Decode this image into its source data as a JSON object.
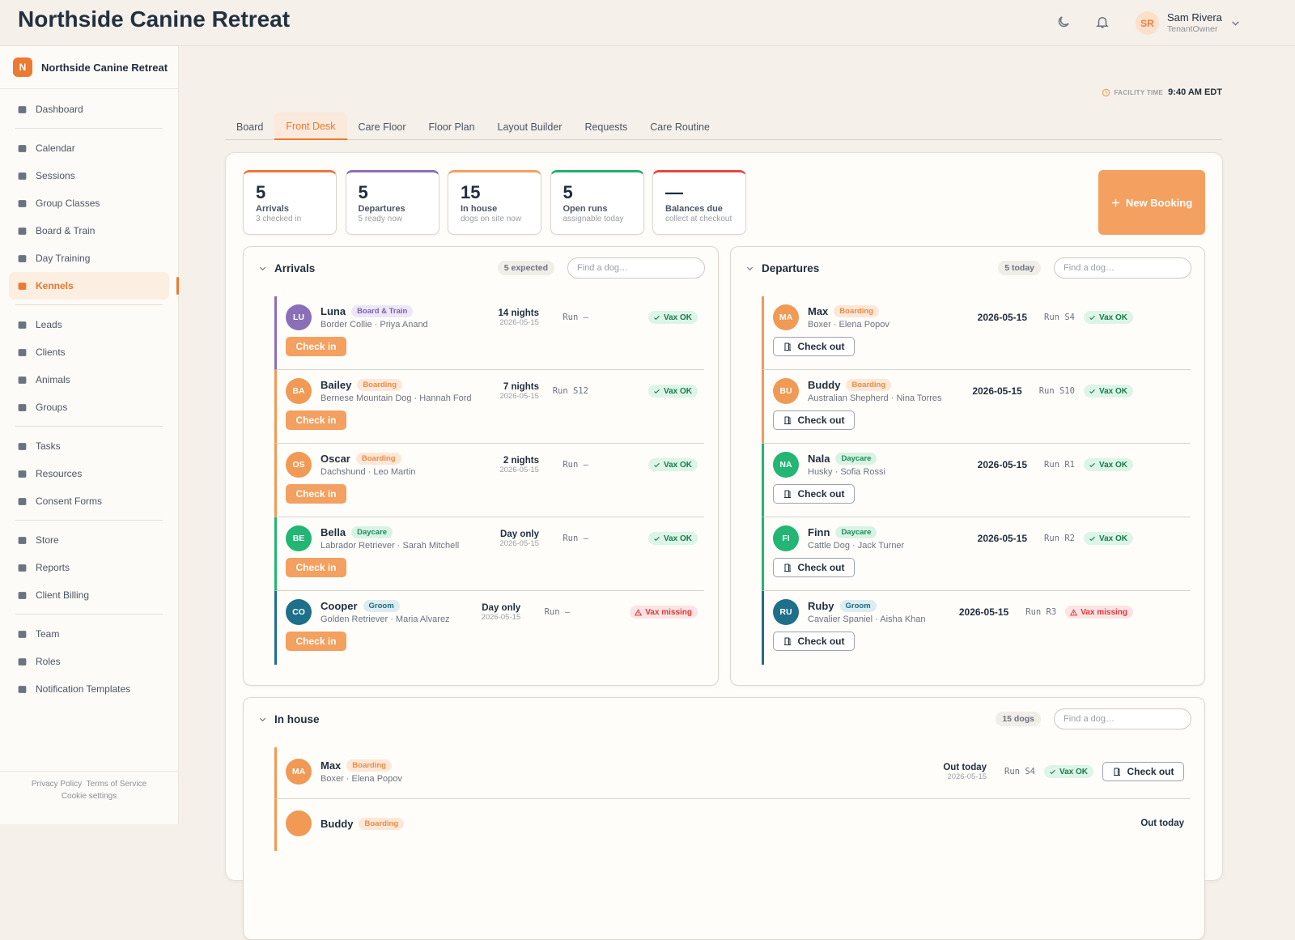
{
  "header": {
    "title": "Northside Canine Retreat",
    "user": {
      "initials": "SR",
      "name": "Sam Rivera",
      "role": "TenantOwner"
    }
  },
  "sidebar": {
    "brand_initial": "N",
    "brand": "Northside Canine Retreat",
    "groups": [
      [
        {
          "label": "Dashboard"
        }
      ],
      [
        {
          "label": "Calendar"
        },
        {
          "label": "Sessions"
        },
        {
          "label": "Group Classes"
        },
        {
          "label": "Board & Train"
        },
        {
          "label": "Day Training"
        },
        {
          "label": "Kennels",
          "active": true
        }
      ],
      [
        {
          "label": "Leads"
        },
        {
          "label": "Clients"
        },
        {
          "label": "Animals"
        },
        {
          "label": "Groups"
        }
      ],
      [
        {
          "label": "Tasks"
        },
        {
          "label": "Resources"
        },
        {
          "label": "Consent Forms"
        }
      ],
      [
        {
          "label": "Store"
        },
        {
          "label": "Reports"
        },
        {
          "label": "Client Billing"
        }
      ],
      [
        {
          "label": "Team"
        },
        {
          "label": "Roles"
        },
        {
          "label": "Notification Templates"
        }
      ]
    ],
    "footer": [
      "Privacy Policy",
      "Terms of Service",
      "Cookie settings"
    ]
  },
  "facility_time": {
    "label": "FACILITY TIME",
    "value": "9:40 AM EDT"
  },
  "tabs": {
    "items": [
      "Board",
      "Front Desk",
      "Care Floor",
      "Floor Plan",
      "Layout Builder",
      "Requests",
      "Care Routine"
    ],
    "active": 1
  },
  "stats": [
    {
      "value": 5,
      "label": "Arrivals",
      "sub": "3 checked in",
      "color": "#f0763a"
    },
    {
      "value": 5,
      "label": "Departures",
      "sub": "5 ready now",
      "color": "#8a6fb8"
    },
    {
      "value": 15,
      "label": "In house",
      "sub": "dogs on site now",
      "color": "#f2a060"
    },
    {
      "value": 5,
      "label": "Open runs",
      "sub": "assignable today",
      "color": "#22b06e"
    },
    {
      "value": "—",
      "label": "Balances due",
      "sub": "collect at checkout",
      "color": "#e84545"
    }
  ],
  "new_booking": "New Booking",
  "arrivals": {
    "title": "Arrivals",
    "count": "5 expected",
    "search": "Find a dog…",
    "rows": [
      {
        "initials": "LU",
        "name": "Luna",
        "tag": "Board & Train",
        "detail": "Border Collie · Priya Anand",
        "stay": "14 nights",
        "date": "2026-05-15",
        "run": "Run –",
        "vax": "Vax OK",
        "vax_ok": true,
        "action": "Check in"
      },
      {
        "initials": "BA",
        "name": "Bailey",
        "tag": "Boarding",
        "detail": "Bernese Mountain Dog · Hannah Ford",
        "stay": "7 nights",
        "date": "2026-05-15",
        "run": "Run S12",
        "vax": "Vax OK",
        "vax_ok": true,
        "action": "Check in"
      },
      {
        "initials": "OS",
        "name": "Oscar",
        "tag": "Boarding",
        "detail": "Dachshund · Leo Martin",
        "stay": "2 nights",
        "date": "2026-05-15",
        "run": "Run –",
        "vax": "Vax OK",
        "vax_ok": true,
        "action": "Check in"
      },
      {
        "initials": "BE",
        "name": "Bella",
        "tag": "Daycare",
        "detail": "Labrador Retriever · Sarah Mitchell",
        "stay": "Day only",
        "date": "2026-05-15",
        "run": "Run –",
        "vax": "Vax OK",
        "vax_ok": true,
        "action": "Check in"
      },
      {
        "initials": "CO",
        "name": "Cooper",
        "tag": "Groom",
        "detail": "Golden Retriever · Maria Alvarez",
        "stay": "Day only",
        "date": "2026-05-15",
        "run": "Run –",
        "vax": "Vax missing",
        "vax_ok": false,
        "action": "Check in"
      }
    ]
  },
  "departures": {
    "title": "Departures",
    "count": "5 today",
    "search": "Find a dog…",
    "rows": [
      {
        "initials": "MA",
        "name": "Max",
        "tag": "Boarding",
        "detail": "Boxer · Elena Popov",
        "date": "2026-05-15",
        "run": "Run S4",
        "vax": "Vax OK",
        "vax_ok": true,
        "action": "Check out"
      },
      {
        "initials": "BU",
        "name": "Buddy",
        "tag": "Boarding",
        "detail": "Australian Shepherd · Nina Torres",
        "date": "2026-05-15",
        "run": "Run S10",
        "vax": "Vax OK",
        "vax_ok": true,
        "action": "Check out"
      },
      {
        "initials": "NA",
        "name": "Nala",
        "tag": "Daycare",
        "detail": "Husky · Sofia Rossi",
        "date": "2026-05-15",
        "run": "Run R1",
        "vax": "Vax OK",
        "vax_ok": true,
        "action": "Check out"
      },
      {
        "initials": "FI",
        "name": "Finn",
        "tag": "Daycare",
        "detail": "Cattle Dog · Jack Turner",
        "date": "2026-05-15",
        "run": "Run R2",
        "vax": "Vax OK",
        "vax_ok": true,
        "action": "Check out"
      },
      {
        "initials": "RU",
        "name": "Ruby",
        "tag": "Groom",
        "detail": "Cavalier Spaniel · Aisha Khan",
        "date": "2026-05-15",
        "run": "Run R3",
        "vax": "Vax missing",
        "vax_ok": false,
        "action": "Check out"
      }
    ]
  },
  "in_house": {
    "title": "In house",
    "count": "15 dogs",
    "search": "Find a dog…",
    "rows": [
      {
        "initials": "MA",
        "name": "Max",
        "tag": "Boarding",
        "detail": "Boxer · Elena Popov",
        "stay": "Out today",
        "date": "2026-05-15",
        "run": "Run S4",
        "vax": "Vax OK",
        "vax_ok": true,
        "action": "Check out"
      },
      {
        "name": "Buddy",
        "tag": "Boarding",
        "stay": "Out today"
      }
    ]
  }
}
